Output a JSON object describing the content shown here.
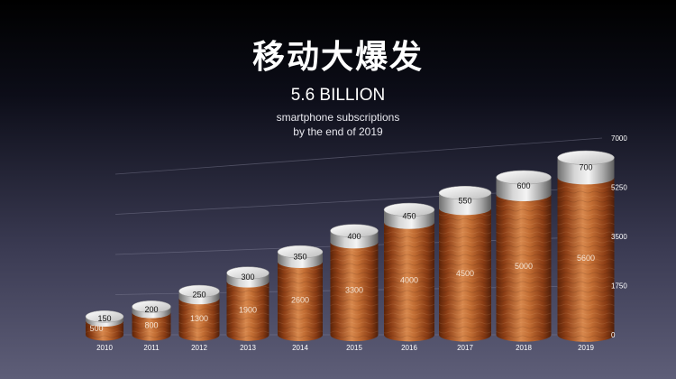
{
  "header": {
    "title": "移动大爆发",
    "headline": "5.6 BILLION",
    "caption_line1": "smartphone subscriptions",
    "caption_line2": "by the end of 2019"
  },
  "chart_data": {
    "type": "bar",
    "title": "移动大爆发",
    "categories": [
      "2010",
      "2011",
      "2012",
      "2013",
      "2014",
      "2015",
      "2016",
      "2017",
      "2018",
      "2019"
    ],
    "series": [
      {
        "values": [
          500,
          800,
          1300,
          1900,
          2600,
          3300,
          4000,
          4500,
          5000,
          5600
        ]
      },
      {
        "values": [
          150,
          200,
          250,
          300,
          350,
          400,
          450,
          550,
          600,
          700
        ]
      }
    ],
    "stacked": true,
    "y_ticks": [
      "0",
      "1750",
      "3500",
      "5250",
      "7000"
    ],
    "ylim": [
      0,
      7000
    ],
    "y_axis_position": "right",
    "grid": true,
    "colors": {
      "bar_body": "#b8622e",
      "bar_cap": "#cfcfcf"
    }
  }
}
